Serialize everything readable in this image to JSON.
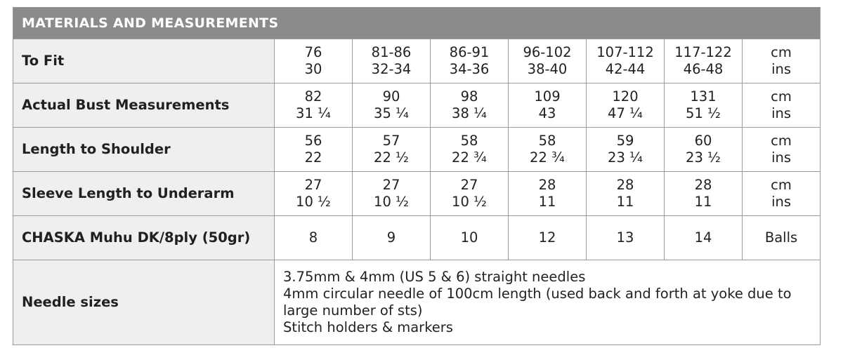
{
  "header": {
    "title": "MATERIALS AND MEASUREMENTS"
  },
  "table": {
    "rows": [
      {
        "label": "To Fit",
        "cells": [
          [
            "76",
            "30"
          ],
          [
            "81-86",
            "32-34"
          ],
          [
            "86-91",
            "34-36"
          ],
          [
            "96-102",
            "38-40"
          ],
          [
            "107-112",
            "42-44"
          ],
          [
            "117-122",
            "46-48"
          ]
        ],
        "unit": [
          "cm",
          "ins"
        ]
      },
      {
        "label": "Actual Bust Measurements",
        "cells": [
          [
            "82",
            "31 ¼"
          ],
          [
            "90",
            "35 ¼"
          ],
          [
            "98",
            "38 ¼"
          ],
          [
            "109",
            "43"
          ],
          [
            "120",
            "47 ¼"
          ],
          [
            "131",
            "51 ½"
          ]
        ],
        "unit": [
          "cm",
          "ins"
        ]
      },
      {
        "label": "Length to Shoulder",
        "cells": [
          [
            "56",
            "22"
          ],
          [
            "57",
            "22 ½"
          ],
          [
            "58",
            "22 ¾"
          ],
          [
            "58",
            "22 ¾"
          ],
          [
            "59",
            "23 ¼"
          ],
          [
            "60",
            "23 ½"
          ]
        ],
        "unit": [
          "cm",
          "ins"
        ]
      },
      {
        "label": "Sleeve Length to Underarm",
        "cells": [
          [
            "27",
            "10 ½"
          ],
          [
            "27",
            "10 ½"
          ],
          [
            "27",
            "10 ½"
          ],
          [
            "28",
            "11"
          ],
          [
            "28",
            "11"
          ],
          [
            "28",
            "11"
          ]
        ],
        "unit": [
          "cm",
          "ins"
        ]
      },
      {
        "label": "CHASKA Muhu DK/8ply (50gr)",
        "cells": [
          [
            "8"
          ],
          [
            "9"
          ],
          [
            "10"
          ],
          [
            "12"
          ],
          [
            "13"
          ],
          [
            "14"
          ]
        ],
        "unit": [
          "Balls"
        ]
      }
    ],
    "needles": {
      "label": "Needle sizes",
      "lines": [
        "3.75mm & 4mm (US 5 & 6) straight needles",
        "4mm circular needle of 100cm length (used back and forth at yoke due to large number of sts)",
        "Stitch holders & markers"
      ]
    }
  }
}
